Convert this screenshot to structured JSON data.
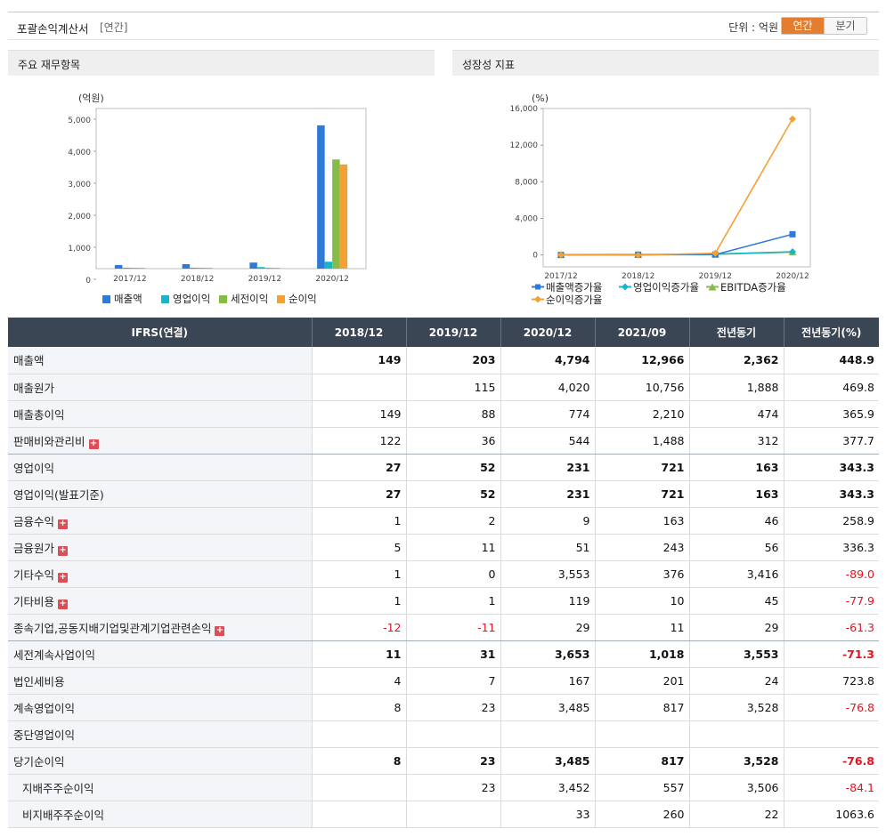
{
  "header": {
    "title": "포괄손익계산서",
    "subtitle": "[연간]",
    "unit": "단위 : 억원",
    "toggle": [
      "연간",
      "분기"
    ]
  },
  "panels": {
    "left_title": "주요 재무항목",
    "right_title": "성장성 지표"
  },
  "chart_data": [
    {
      "type": "bar",
      "ylabel": "(억원)",
      "ylim": [
        0,
        5000
      ],
      "yticks": [
        "5,000",
        "4,000",
        "3,000",
        "2,000",
        "1,000",
        "0"
      ],
      "categories": [
        "2017/12",
        "2018/12",
        "2019/12",
        "2020/12"
      ],
      "series": [
        {
          "name": "매출액",
          "color": "#2e7ad6",
          "values": [
            120,
            149,
            203,
            4794
          ]
        },
        {
          "name": "영업이익",
          "color": "#17b5c8",
          "values": [
            20,
            27,
            52,
            231
          ]
        },
        {
          "name": "세전이익",
          "color": "#86bb47",
          "values": [
            10,
            11,
            31,
            3653
          ]
        },
        {
          "name": "순이익",
          "color": "#f3a134",
          "values": [
            10,
            8,
            23,
            3485
          ]
        }
      ],
      "legend": "bottom"
    },
    {
      "type": "line",
      "ylabel": "(%)",
      "ylim": [
        -1300,
        16000
      ],
      "yticks": [
        "16,000",
        "12,000",
        "8,000",
        "4,000",
        "0"
      ],
      "categories": [
        "2017/12",
        "2018/12",
        "2019/12",
        "2020/12"
      ],
      "series": [
        {
          "name": "매출액증가율",
          "color": "#2e7ad6",
          "marker": "square",
          "values": [
            0,
            24,
            36,
            2262
          ]
        },
        {
          "name": "영업이익증가율",
          "color": "#17b5c8",
          "marker": "diamond",
          "values": [
            0,
            35,
            93,
            344
          ]
        },
        {
          "name": "EBITDA증가율",
          "color": "#86bb47",
          "marker": "triangle",
          "values": [
            0,
            30,
            80,
            310
          ]
        },
        {
          "name": "순이익증가율",
          "color": "#f3a134",
          "marker": "diamond",
          "values": [
            0,
            -20,
            188,
            14852
          ]
        }
      ],
      "legend": "bottom"
    }
  ],
  "table": {
    "columns": [
      "IFRS(연결)",
      "2018/12",
      "2019/12",
      "2020/12",
      "2021/09",
      "전년동기",
      "전년동기(%)"
    ],
    "rows": [
      {
        "label": "매출액",
        "bold": true,
        "values": [
          "149",
          "203",
          "4,794",
          "12,966",
          "2,362",
          "448.9"
        ]
      },
      {
        "label": "매출원가",
        "values": [
          "",
          "115",
          "4,020",
          "10,756",
          "1,888",
          "469.8"
        ]
      },
      {
        "label": "매출총이익",
        "values": [
          "149",
          "88",
          "774",
          "2,210",
          "474",
          "365.9"
        ]
      },
      {
        "label": "판매비와관리비",
        "plus": true,
        "sec": true,
        "values": [
          "122",
          "36",
          "544",
          "1,488",
          "312",
          "377.7"
        ]
      },
      {
        "label": "영업이익",
        "bold": true,
        "values": [
          "27",
          "52",
          "231",
          "721",
          "163",
          "343.3"
        ]
      },
      {
        "label": "영업이익(발표기준)",
        "bold": true,
        "values": [
          "27",
          "52",
          "231",
          "721",
          "163",
          "343.3"
        ]
      },
      {
        "label": "금융수익",
        "plus": true,
        "values": [
          "1",
          "2",
          "9",
          "163",
          "46",
          "258.9"
        ]
      },
      {
        "label": "금융원가",
        "plus": true,
        "values": [
          "5",
          "11",
          "51",
          "243",
          "56",
          "336.3"
        ]
      },
      {
        "label": "기타수익",
        "plus": true,
        "values": [
          "1",
          "0",
          "3,553",
          "376",
          "3,416",
          "-89.0"
        ]
      },
      {
        "label": "기타비용",
        "plus": true,
        "values": [
          "1",
          "1",
          "119",
          "10",
          "45",
          "-77.9"
        ]
      },
      {
        "label": "종속기업,공동지배기업및관계기업관련손익",
        "plus": true,
        "sec": true,
        "values": [
          "-12",
          "-11",
          "29",
          "11",
          "29",
          "-61.3"
        ]
      },
      {
        "label": "세전계속사업이익",
        "bold": true,
        "values": [
          "11",
          "31",
          "3,653",
          "1,018",
          "3,553",
          "-71.3"
        ]
      },
      {
        "label": "법인세비용",
        "values": [
          "4",
          "7",
          "167",
          "201",
          "24",
          "723.8"
        ]
      },
      {
        "label": "계속영업이익",
        "values": [
          "8",
          "23",
          "3,485",
          "817",
          "3,528",
          "-76.8"
        ]
      },
      {
        "label": "중단영업이익",
        "values": [
          "",
          "",
          "",
          "",
          "",
          ""
        ]
      },
      {
        "label": "당기순이익",
        "bold": true,
        "values": [
          "8",
          "23",
          "3,485",
          "817",
          "3,528",
          "-76.8"
        ]
      },
      {
        "label": "지배주주순이익",
        "indent": true,
        "values": [
          "",
          "23",
          "3,452",
          "557",
          "3,506",
          "-84.1"
        ]
      },
      {
        "label": "비지배주주순이익",
        "indent": true,
        "values": [
          "",
          "",
          "33",
          "260",
          "22",
          "1063.6"
        ]
      }
    ]
  }
}
